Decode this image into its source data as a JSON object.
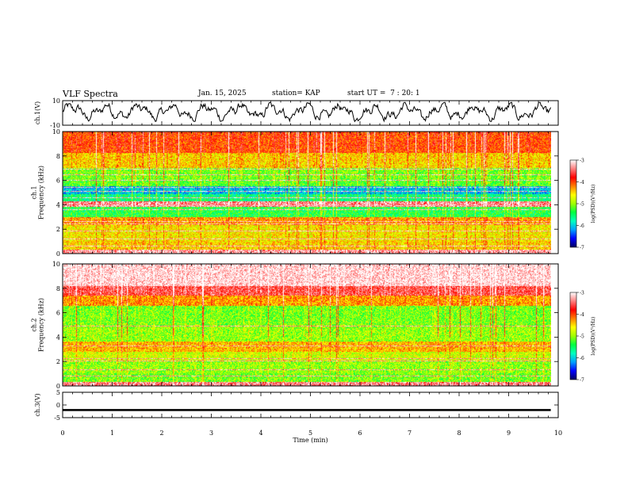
{
  "header": {
    "title": "VLF Spectra",
    "date": "Jan. 15, 2025",
    "station": "station= KAP",
    "start": "start UT =  7 : 20: 1"
  },
  "chart_data": [
    {
      "type": "line",
      "panel": "ch1-waveform",
      "ylabel": "ch.1(V)",
      "ylim": [
        -10,
        10
      ],
      "yticks": [
        "10",
        "-10"
      ],
      "xlim": [
        0,
        10
      ],
      "series": [
        {
          "values_desc": "noisy waveform oscillating roughly between -6 and 8 V over 0–9.85 min"
        }
      ]
    },
    {
      "type": "heatmap",
      "panel": "ch1-spectrogram",
      "ylabel": "ch.1\nFrequency  (kHz)",
      "ylim": [
        0,
        10
      ],
      "yticks": [
        "0",
        "2",
        "4",
        "6",
        "8",
        "10"
      ],
      "xlim": [
        0,
        10
      ],
      "data_end_min": 9.85,
      "colorbar": {
        "label": "log(PSD)(V²/Hz)",
        "range": [
          -7,
          -3
        ],
        "ticks": [
          "-3",
          "-4",
          "-5",
          "-6",
          "-7"
        ]
      },
      "bands_khz": [
        {
          "from": 0,
          "to": 0.3,
          "level": -3.3
        },
        {
          "from": 0.3,
          "to": 1.0,
          "level": -4.5
        },
        {
          "from": 1.0,
          "to": 2.3,
          "level": -4.6
        },
        {
          "from": 2.3,
          "to": 3.0,
          "level": -4.3
        },
        {
          "from": 3.0,
          "to": 3.8,
          "level": -5.4
        },
        {
          "from": 3.8,
          "to": 4.3,
          "level": -3.4
        },
        {
          "from": 4.3,
          "to": 4.9,
          "level": -5.6
        },
        {
          "from": 4.9,
          "to": 5.5,
          "level": -6.1
        },
        {
          "from": 5.5,
          "to": 6.1,
          "level": -5.2
        },
        {
          "from": 6.1,
          "to": 7.0,
          "level": -5.1
        },
        {
          "from": 7.0,
          "to": 8.3,
          "level": -4.5
        },
        {
          "from": 8.3,
          "to": 10.0,
          "level": -4.0
        }
      ],
      "lines_khz": [
        0.6,
        1.2,
        1.8,
        2.4,
        2.6,
        3.6,
        3.9,
        4.6,
        5.1,
        5.4,
        6.0,
        6.5,
        6.9
      ],
      "line_level": -3.2
    },
    {
      "type": "heatmap",
      "panel": "ch2-spectrogram",
      "ylabel": "ch.2\nFrequency  (kHz)",
      "ylim": [
        0,
        10
      ],
      "yticks": [
        "0",
        "2",
        "4",
        "6",
        "8",
        "10"
      ],
      "xlim": [
        0,
        10
      ],
      "data_end_min": 9.85,
      "colorbar": {
        "label": "log(PSD)(V²/Hz)",
        "range": [
          -7,
          -3
        ],
        "ticks": [
          "-3",
          "-4",
          "-5",
          "-6",
          "-7"
        ]
      },
      "bands_khz": [
        {
          "from": 0,
          "to": 0.3,
          "level": -3.4
        },
        {
          "from": 0.3,
          "to": 1.0,
          "level": -5.1
        },
        {
          "from": 1.0,
          "to": 2.0,
          "level": -5.0
        },
        {
          "from": 2.0,
          "to": 2.8,
          "level": -4.8
        },
        {
          "from": 2.8,
          "to": 3.6,
          "level": -4.4
        },
        {
          "from": 3.6,
          "to": 5.0,
          "level": -5.0
        },
        {
          "from": 5.0,
          "to": 6.6,
          "level": -5.1
        },
        {
          "from": 6.6,
          "to": 7.4,
          "level": -4.3
        },
        {
          "from": 7.4,
          "to": 8.2,
          "level": -3.6
        },
        {
          "from": 8.2,
          "to": 10.0,
          "level": -3.1
        }
      ],
      "lines_khz": [
        0.8,
        1.3,
        2.0,
        2.2,
        3.3,
        4.9
      ],
      "line_level": -3.3
    },
    {
      "type": "line",
      "panel": "ch3-waveform",
      "ylabel": "ch.3(V)",
      "ylim": [
        -5,
        5
      ],
      "yticks": [
        "5",
        "0",
        "-5"
      ],
      "xlim": [
        0,
        10
      ],
      "xlabel": "Time  (min)",
      "xticks": [
        "0",
        "1",
        "2",
        "3",
        "4",
        "5",
        "6",
        "7",
        "8",
        "9",
        "10"
      ],
      "series": [
        {
          "values_desc": "thick flat band near -2 V",
          "center": -2,
          "halfwidth": 0.4,
          "end": 9.85
        }
      ]
    }
  ],
  "colors": {
    "colormap": [
      "#000060",
      "#0000ff",
      "#00a0ff",
      "#00ffc0",
      "#00ff40",
      "#a0ff00",
      "#ffff00",
      "#ff8000",
      "#ff0000",
      "#ff8080",
      "#ffffff"
    ]
  }
}
